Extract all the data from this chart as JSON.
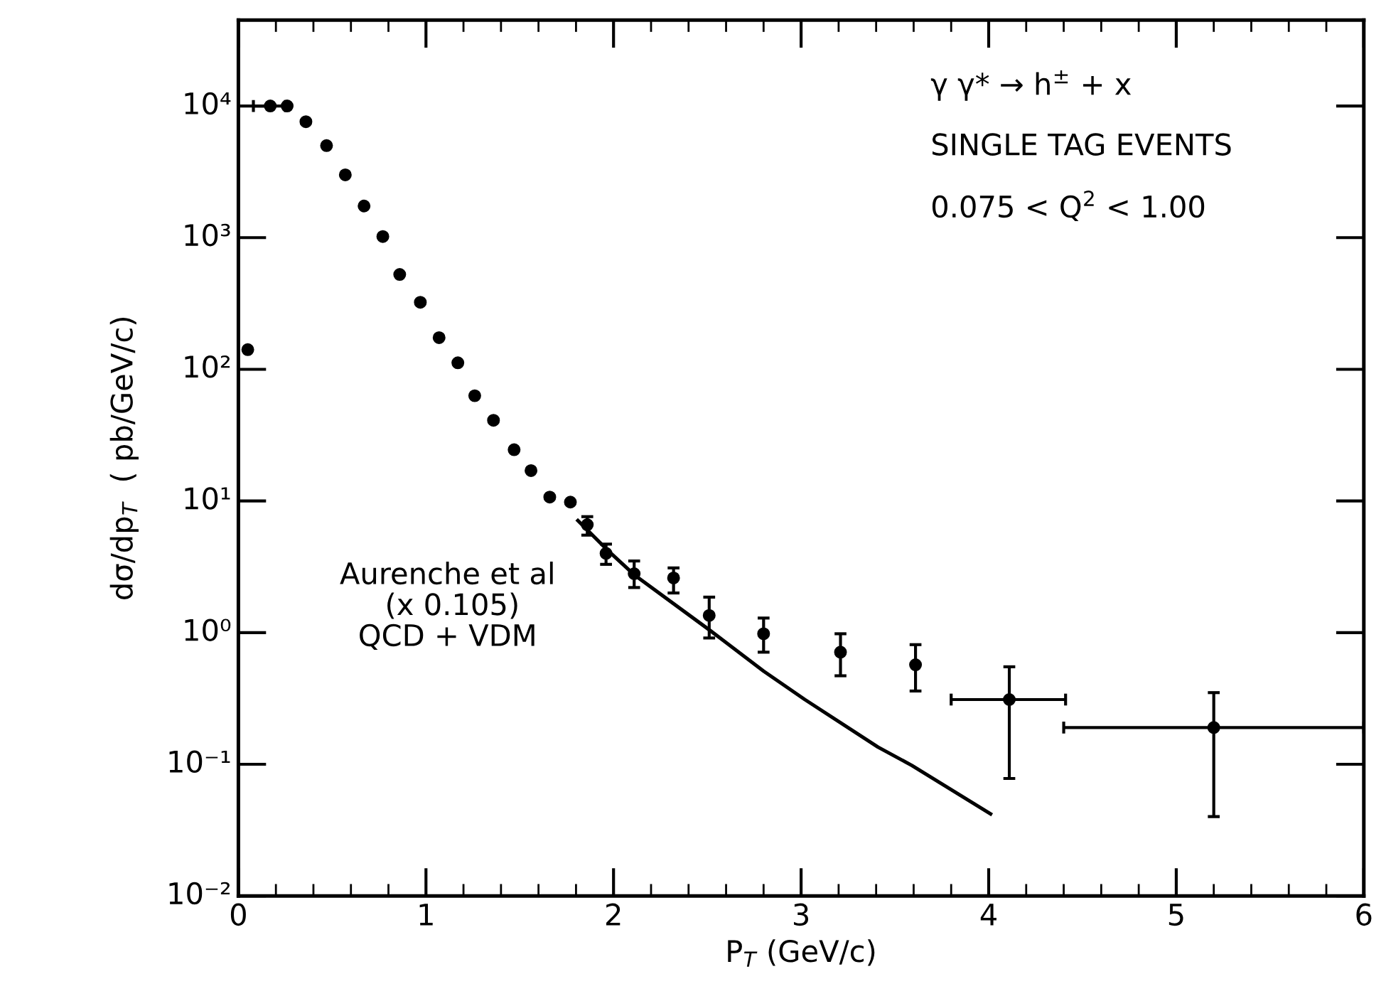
{
  "chart_data": {
    "type": "scatter",
    "xlabel": "P$_{T}$ (GeV/c)",
    "ylabel": "dσ/dp$_{T}$  ( pb/GeV/c)",
    "annotations": [
      "γ γ* → h$^{±}$ + x",
      "SINGLE TAG EVENTS",
      "0.075 < Q$^{2}$ < 1.00",
      "Aurenche et al\n (x 0.105)\nQCD + VDM"
    ],
    "log": "y",
    "xlim": [
      0,
      6
    ],
    "ylim": [
      0.01,
      45000
    ],
    "xticks": [
      0,
      1,
      2,
      3,
      4,
      5,
      6
    ],
    "yticks": [
      {
        "value": 0.01,
        "label": "10⁻²"
      },
      {
        "value": 0.1,
        "label": "10⁻¹"
      },
      {
        "value": 1,
        "label": "10⁰"
      },
      {
        "value": 10,
        "label": "10¹"
      },
      {
        "value": 100,
        "label": "10²"
      },
      {
        "value": 1000,
        "label": "10³"
      },
      {
        "value": 10000,
        "label": "10⁴"
      }
    ],
    "grid": false,
    "series": [
      {
        "color": "#000000",
        "marker": "circle",
        "x": [
          0.05,
          0.17,
          0.26,
          0.36,
          0.47,
          0.57,
          0.67,
          0.77,
          0.86,
          0.97,
          1.07,
          1.17,
          1.26,
          1.36,
          1.47,
          1.56,
          1.66,
          1.77,
          1.86,
          1.96,
          2.11,
          2.32,
          2.51,
          2.8,
          3.21,
          3.61,
          4.11,
          5.2
        ],
        "values": [
          141,
          10000,
          10000,
          7600,
          5000,
          3000,
          1740,
          1020,
          525,
          323,
          174,
          112,
          63,
          41,
          24.5,
          17,
          10.7,
          9.8,
          6.6,
          4.0,
          2.8,
          2.6,
          1.35,
          0.98,
          0.71,
          0.57,
          0.31,
          0.19
        ],
        "errors": [
          null,
          null,
          null,
          null,
          null,
          null,
          null,
          null,
          null,
          null,
          null,
          null,
          null,
          null,
          null,
          null,
          null,
          null,
          [
            5.5,
            7.6
          ],
          [
            3.3,
            4.7
          ],
          [
            2.2,
            3.5
          ],
          [
            2.0,
            3.1
          ],
          [
            0.91,
            1.86
          ],
          [
            0.71,
            1.29
          ],
          [
            0.47,
            0.98
          ],
          [
            0.36,
            0.81
          ],
          [
            0.078,
            0.55
          ],
          [
            0.04,
            0.35
          ]
        ],
        "xerrors": [
          null,
          [
            0.08,
            0.25
          ],
          null,
          null,
          null,
          null,
          null,
          null,
          null,
          null,
          null,
          null,
          null,
          null,
          null,
          null,
          null,
          null,
          null,
          null,
          null,
          null,
          null,
          null,
          null,
          null,
          [
            3.8,
            4.41
          ],
          [
            4.4,
            6.0
          ]
        ]
      },
      {
        "type": "line",
        "color": "#000000",
        "line_style": "solid",
        "marker": "none",
        "x": [
          1.81,
          1.97,
          2.11,
          2.51,
          2.8,
          3.02,
          3.41,
          3.59,
          4.01
        ],
        "values": [
          7.1,
          4.2,
          2.75,
          1.05,
          0.51,
          0.31,
          0.135,
          0.098,
          0.042
        ]
      }
    ]
  }
}
